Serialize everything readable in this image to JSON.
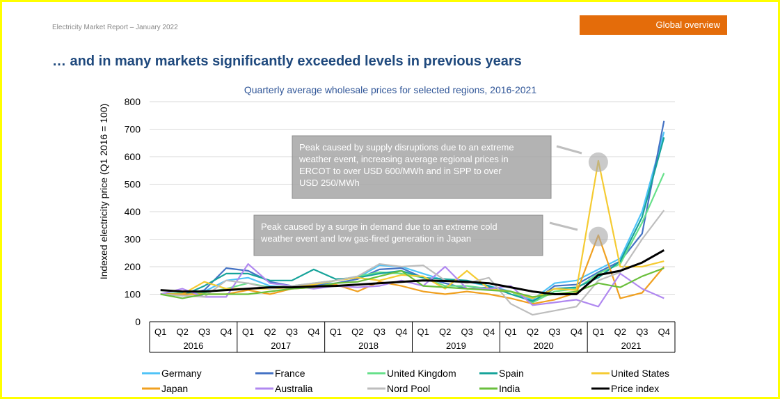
{
  "header": {
    "report": "Electricity Market Report – January 2022",
    "section_tag": "Global overview"
  },
  "page_title": "… and in many markets significantly exceeded levels in previous years",
  "chart_data": {
    "type": "line",
    "title": "Quarterly average wholesale prices for selected regions, 2016-2021",
    "ylabel": "Indexed electricity price (Q1 2016 = 100)",
    "xlabel": "",
    "ylim": [
      0,
      800
    ],
    "yticks": [
      0,
      100,
      200,
      300,
      400,
      500,
      600,
      700,
      800
    ],
    "grid": true,
    "legend": "bottom",
    "years": [
      "2016",
      "2017",
      "2018",
      "2019",
      "2020",
      "2021"
    ],
    "quarters": [
      "Q1",
      "Q2",
      "Q3",
      "Q4"
    ],
    "series": [
      {
        "name": "Germany",
        "color": "#4fc3f7",
        "values": [
          100,
          105,
          110,
          150,
          160,
          130,
          125,
          130,
          150,
          160,
          205,
          200,
          175,
          150,
          145,
          130,
          110,
          80,
          140,
          150,
          190,
          230,
          400,
          690
        ]
      },
      {
        "name": "France",
        "color": "#4472c4",
        "values": [
          100,
          95,
          115,
          195,
          185,
          145,
          130,
          130,
          140,
          155,
          190,
          195,
          160,
          140,
          120,
          125,
          110,
          70,
          130,
          135,
          180,
          220,
          320,
          730
        ]
      },
      {
        "name": "United Kingdom",
        "color": "#66e08a",
        "values": [
          100,
          105,
          105,
          120,
          140,
          125,
          130,
          140,
          150,
          165,
          180,
          175,
          160,
          130,
          130,
          120,
          110,
          70,
          110,
          120,
          175,
          210,
          360,
          540
        ]
      },
      {
        "name": "Spain",
        "color": "#16a39a",
        "values": [
          100,
          95,
          130,
          175,
          175,
          150,
          150,
          190,
          155,
          160,
          175,
          185,
          160,
          155,
          150,
          130,
          100,
          75,
          120,
          125,
          160,
          220,
          380,
          670
        ]
      },
      {
        "name": "United States",
        "color": "#f5cb32",
        "values": [
          100,
          100,
          145,
          120,
          120,
          120,
          125,
          135,
          150,
          160,
          150,
          170,
          165,
          120,
          185,
          120,
          110,
          85,
          120,
          115,
          585,
          200,
          200,
          220
        ]
      },
      {
        "name": "Japan",
        "color": "#f0a020",
        "values": [
          100,
          100,
          100,
          100,
          115,
          100,
          120,
          125,
          135,
          110,
          145,
          130,
          110,
          100,
          110,
          100,
          85,
          65,
          80,
          105,
          315,
          85,
          105,
          200
        ]
      },
      {
        "name": "Australia",
        "color": "#b088f0",
        "values": [
          100,
          120,
          90,
          90,
          210,
          140,
          130,
          120,
          130,
          125,
          130,
          150,
          130,
          200,
          120,
          120,
          130,
          60,
          70,
          80,
          55,
          175,
          120,
          85
        ]
      },
      {
        "name": "Nord Pool",
        "color": "#bdbdbd",
        "values": [
          100,
          95,
          90,
          150,
          140,
          120,
          130,
          140,
          150,
          165,
          210,
          200,
          205,
          150,
          140,
          160,
          65,
          25,
          40,
          55,
          150,
          180,
          300,
          405
        ]
      },
      {
        "name": "India",
        "color": "#6abf3c",
        "values": [
          100,
          85,
          100,
          100,
          100,
          110,
          120,
          125,
          140,
          145,
          165,
          185,
          130,
          125,
          120,
          115,
          110,
          90,
          100,
          110,
          140,
          125,
          165,
          195
        ]
      },
      {
        "name": "Price index",
        "color": "#000000",
        "values": [
          115,
          110,
          110,
          115,
          120,
          125,
          125,
          128,
          130,
          135,
          140,
          145,
          150,
          148,
          145,
          140,
          125,
          110,
          100,
          100,
          170,
          185,
          215,
          260
        ]
      }
    ],
    "annotations": [
      {
        "text": "Peak caused by supply disruptions due to an extreme weather event, increasing average regional prices in ERCOT to over USD 600/MWh and in SPP to over USD 250/MWh",
        "lines": [
          "Peak caused by supply disruptions due to an extreme",
          "weather event, increasing average regional prices in",
          "ERCOT to over USD 600/MWh and in SPP to over",
          "USD 250/MWh"
        ],
        "target": {
          "year": "2021",
          "quarter": "Q1",
          "value": 585
        }
      },
      {
        "text": "Peak caused by a surge in demand due to an extreme cold weather event and low gas-fired generation in Japan",
        "lines": [
          "Peak caused by a surge in demand due to an extreme cold",
          "weather event and low gas-fired generation in Japan"
        ],
        "target": {
          "year": "2021",
          "quarter": "Q1",
          "value": 315
        }
      }
    ]
  }
}
